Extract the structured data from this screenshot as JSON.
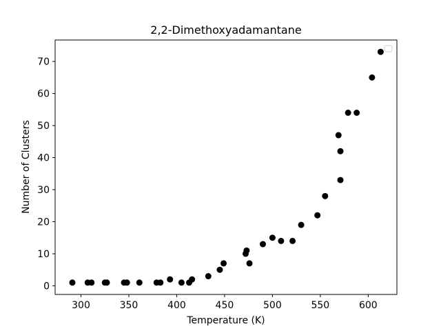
{
  "chart_data": {
    "type": "scatter",
    "title": "2,2-Dimethoxyadamantane",
    "xlabel": "Temperature (K)",
    "ylabel": "Number of Clusters",
    "xlim": [
      273,
      630
    ],
    "ylim": [
      -2.7,
      76.7
    ],
    "xticks": [
      300,
      350,
      400,
      450,
      500,
      550,
      600
    ],
    "yticks": [
      0,
      10,
      20,
      30,
      40,
      50,
      60,
      70
    ],
    "grid": false,
    "legend": "top-right, empty",
    "marker_color": "#000000",
    "points": [
      {
        "x": 291,
        "y": 1
      },
      {
        "x": 307,
        "y": 1
      },
      {
        "x": 311,
        "y": 1
      },
      {
        "x": 325,
        "y": 1
      },
      {
        "x": 327,
        "y": 1
      },
      {
        "x": 345,
        "y": 1
      },
      {
        "x": 348,
        "y": 1
      },
      {
        "x": 361,
        "y": 1
      },
      {
        "x": 379,
        "y": 1
      },
      {
        "x": 383,
        "y": 1
      },
      {
        "x": 393,
        "y": 2
      },
      {
        "x": 405,
        "y": 1
      },
      {
        "x": 413,
        "y": 1
      },
      {
        "x": 416,
        "y": 2
      },
      {
        "x": 433,
        "y": 3
      },
      {
        "x": 445,
        "y": 5
      },
      {
        "x": 449,
        "y": 7
      },
      {
        "x": 472,
        "y": 10
      },
      {
        "x": 473,
        "y": 11
      },
      {
        "x": 476,
        "y": 7
      },
      {
        "x": 490,
        "y": 13
      },
      {
        "x": 500,
        "y": 15
      },
      {
        "x": 509,
        "y": 14
      },
      {
        "x": 521,
        "y": 14
      },
      {
        "x": 530,
        "y": 19
      },
      {
        "x": 547,
        "y": 22
      },
      {
        "x": 555,
        "y": 28
      },
      {
        "x": 569,
        "y": 47
      },
      {
        "x": 571,
        "y": 42
      },
      {
        "x": 571,
        "y": 33
      },
      {
        "x": 579,
        "y": 54
      },
      {
        "x": 588,
        "y": 54
      },
      {
        "x": 604,
        "y": 65
      },
      {
        "x": 613,
        "y": 73
      }
    ]
  }
}
